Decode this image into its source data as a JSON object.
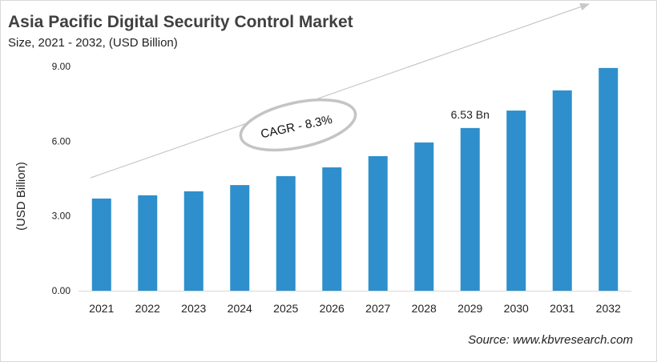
{
  "title": "Asia Pacific Digital Security Control Market",
  "subtitle": "Size, 2021 - 2032, (USD Billion)",
  "source": "Source: www.kbvresearch.com",
  "chart_data": {
    "type": "bar",
    "categories": [
      "2021",
      "2022",
      "2023",
      "2024",
      "2025",
      "2026",
      "2027",
      "2028",
      "2029",
      "2030",
      "2031",
      "2032"
    ],
    "values": [
      3.7,
      3.83,
      3.99,
      4.24,
      4.6,
      4.95,
      5.4,
      5.95,
      6.53,
      7.23,
      8.04,
      8.94
    ],
    "ylabel": "(USD Billion)",
    "xlabel": "",
    "ylim": [
      0,
      9
    ],
    "yticks": [
      "0.00",
      "3.00",
      "6.00",
      "9.00"
    ],
    "grid": false,
    "bar_color": "#2e8fcc",
    "annotations": {
      "data_label": {
        "category": "2029",
        "text": "6.53 Bn"
      },
      "cagr": "CAGR - 8.3%"
    }
  }
}
